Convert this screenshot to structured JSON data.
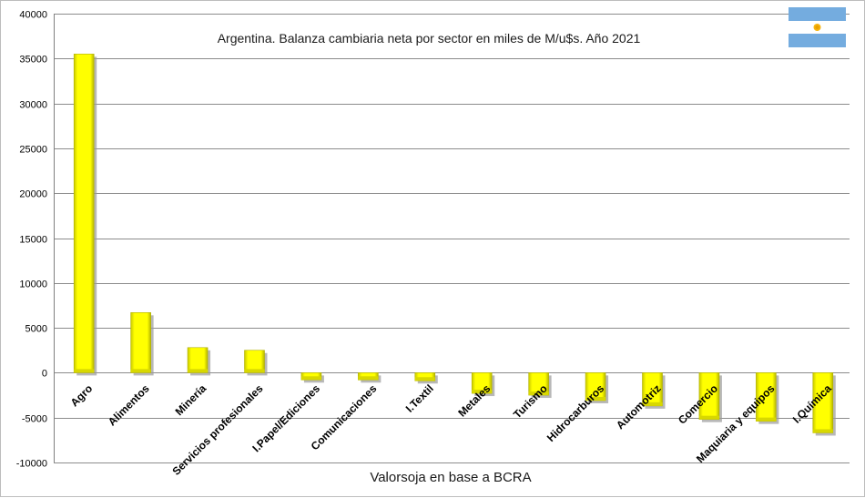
{
  "chart_data": {
    "type": "bar",
    "title": "Argentina. Balanza cambiaria neta por sector en miles de M/u$s. Año 2021",
    "xlabel": "Valorsoja en base a BCRA",
    "ylabel": "",
    "ylim": [
      -10000,
      40000
    ],
    "yticks": [
      40000,
      35000,
      30000,
      25000,
      20000,
      15000,
      10000,
      5000,
      0,
      -5000,
      -10000
    ],
    "grid": true,
    "legend": "none",
    "bar_color": "#ffff00",
    "categories": [
      "Agro",
      "Alimentos",
      "Minería",
      "Servicios profesionales",
      "I.Papel/Ediciones",
      "Comunicaciones",
      "I.Textil",
      "Metales",
      "Turismo",
      "Hidrocarburos",
      "Automotriz",
      "Comercio",
      "Maquiaria y equipos",
      "I.Química"
    ],
    "values": [
      35500,
      6700,
      2800,
      2500,
      -800,
      -800,
      -900,
      -2300,
      -2500,
      -3100,
      -3700,
      -5200,
      -5400,
      -6700
    ]
  },
  "flag": {
    "icon": "argentina-flag-icon",
    "colors": {
      "celeste": "#74acdf",
      "white": "#ffffff",
      "sun": "#f6b40e"
    }
  }
}
